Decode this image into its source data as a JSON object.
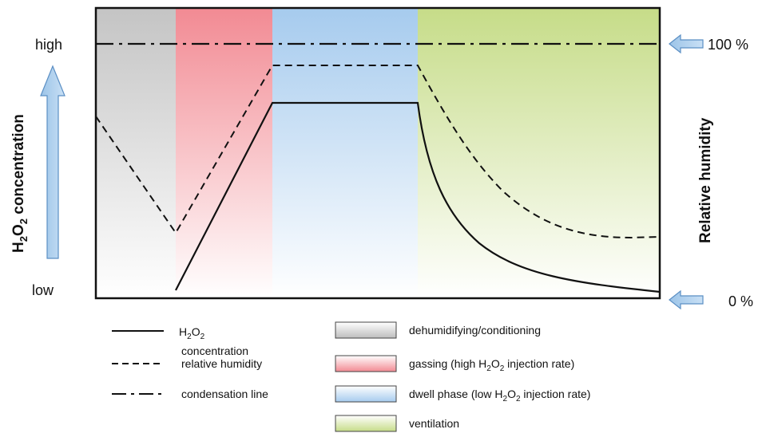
{
  "y_axis_left": {
    "title_parts": [
      "H",
      "2",
      "O",
      "2",
      " concentration"
    ],
    "high_label": "high",
    "low_label": "low"
  },
  "y_axis_right": {
    "title": "Relative humidity",
    "top_label": "100 %",
    "bottom_label": "0 %"
  },
  "phases": [
    {
      "name": "dehumidifying/conditioning",
      "color": "#c8c8c8"
    },
    {
      "name": "gassing",
      "color": "#f08c96"
    },
    {
      "name": "dwell phase",
      "color": "#a8cdef"
    },
    {
      "name": "ventilation",
      "color": "#c8de8c"
    }
  ],
  "legend": {
    "lines": [
      {
        "style": "solid",
        "label_parts": [
          "H",
          "2",
          "O",
          "2"
        ],
        "label_line2": "concentration"
      },
      {
        "style": "dashed",
        "label": "relative humidity"
      },
      {
        "style": "dashdot",
        "label": "condensation line"
      }
    ],
    "phases": [
      {
        "color": "#c8c8c8",
        "label_parts": [
          "dehumidifying/conditioning"
        ]
      },
      {
        "color": "#f08c96",
        "label_parts": [
          "gassing (high H",
          "2",
          "O",
          "2",
          " injection rate)"
        ]
      },
      {
        "color": "#a8cdef",
        "label_parts": [
          "dwell phase (low H",
          "2",
          "O",
          "2",
          " injection rate)"
        ]
      },
      {
        "color": "#c8de8c",
        "label_parts": [
          "ventilation"
        ]
      }
    ]
  },
  "curves": {
    "h2o2_concentration": {
      "description": "rises linearly during gassing, holds constant during dwell, decays exponentially during ventilation",
      "phase_levels": {
        "gassing_start": 0.0,
        "dwell": 0.79,
        "ventilation_end": 0.04
      }
    },
    "relative_humidity": {
      "phase_levels": {
        "start": 0.73,
        "gassing_start": 0.28,
        "dwell": 0.95,
        "ventilation_end": 0.25
      }
    },
    "condensation_line": {
      "level": 1.0
    }
  }
}
